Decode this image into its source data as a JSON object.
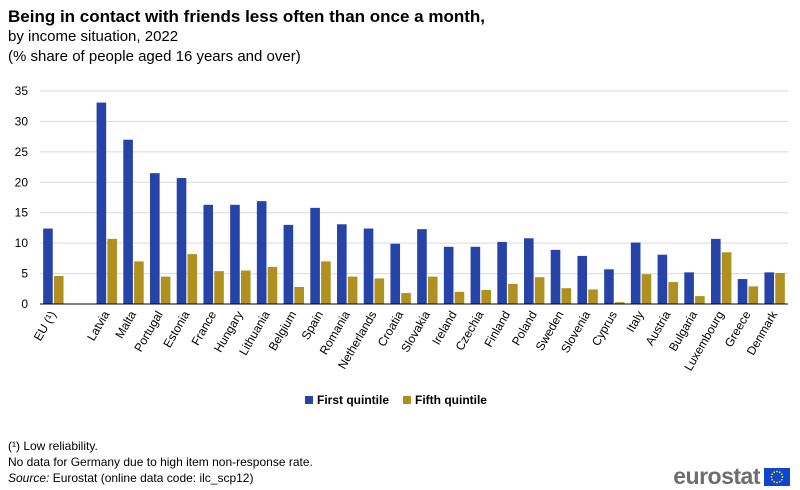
{
  "header": {
    "title": "Being in contact with friends less often than once a month,",
    "subtitle_1": "by income situation, 2022",
    "subtitle_2": "(% share of people aged 16 years and over)"
  },
  "chart_data": {
    "type": "bar",
    "title": "Being in contact with friends less often than once a month, by income situation, 2022",
    "ylabel": "% share of people aged 16 years and over",
    "xlabel": "",
    "ylim": [
      0,
      35
    ],
    "yticks": [
      0,
      5,
      10,
      15,
      20,
      25,
      30,
      35
    ],
    "grid": true,
    "legend_position": "bottom-center",
    "categories": [
      "EU (¹)",
      "Latvia",
      "Malta",
      "Portugal",
      "Estonia",
      "France",
      "Hungary",
      "Lithuania",
      "Belgium",
      "Spain",
      "Romania",
      "Netherlands",
      "Croatia",
      "Slovakia",
      "Ireland",
      "Czechia",
      "Finland",
      "Poland",
      "Sweden",
      "Slovenia",
      "Cyprus",
      "Italy",
      "Austria",
      "Bulgaria",
      "Luxembourg",
      "Greece",
      "Denmark"
    ],
    "series": [
      {
        "name": "First quintile",
        "color": "#2644a7",
        "values": [
          12.4,
          33.1,
          27.0,
          21.5,
          20.7,
          16.3,
          16.3,
          16.9,
          13.0,
          15.8,
          13.1,
          12.4,
          9.9,
          12.3,
          9.4,
          9.4,
          10.2,
          10.8,
          8.9,
          7.9,
          5.7,
          10.1,
          8.1,
          5.2,
          10.7,
          4.1,
          5.2
        ]
      },
      {
        "name": "Fifth quintile",
        "color": "#b09120",
        "values": [
          4.6,
          10.7,
          7.0,
          4.5,
          8.2,
          5.4,
          5.5,
          6.1,
          2.8,
          7.0,
          4.5,
          4.2,
          1.8,
          4.5,
          2.0,
          2.3,
          3.3,
          4.4,
          2.6,
          2.4,
          0.3,
          4.9,
          3.6,
          1.3,
          8.5,
          2.9,
          5.1
        ]
      }
    ]
  },
  "footnotes": {
    "note_1": "(¹) Low reliability.",
    "note_2": "No data for Germany due to high item non-response rate.",
    "source_label": "Source:",
    "source_text": " Eurostat (online data code: ilc_scp12)"
  },
  "logo": {
    "text": "eurostat",
    "flag_color": "#0e47cb",
    "star_color": "#ffde17"
  }
}
